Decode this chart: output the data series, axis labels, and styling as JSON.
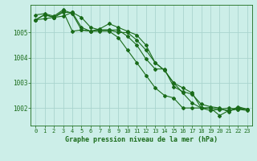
{
  "title": "Graphe pression niveau de la mer (hPa)",
  "bg_color": "#cceee8",
  "grid_color": "#aad4ce",
  "line_color": "#1a6b1a",
  "x_ticks": [
    0,
    1,
    2,
    3,
    4,
    5,
    6,
    7,
    8,
    9,
    10,
    11,
    12,
    13,
    14,
    15,
    16,
    17,
    18,
    19,
    20,
    21,
    22,
    23
  ],
  "y_ticks": [
    1002,
    1003,
    1004,
    1005
  ],
  "ylim": [
    1001.3,
    1006.1
  ],
  "xlim": [
    -0.5,
    23.5
  ],
  "series": [
    [
      1005.5,
      1005.7,
      1005.6,
      1005.8,
      1005.8,
      1005.6,
      1005.2,
      1005.1,
      1005.1,
      1005.0,
      1005.0,
      1004.7,
      1004.3,
      1003.8,
      1003.5,
      1003.0,
      1002.6,
      1002.2,
      1002.0,
      1002.0,
      1001.7,
      1001.9,
      1001.95,
      1001.9
    ],
    [
      1005.7,
      1005.75,
      1005.65,
      1005.9,
      1005.75,
      1005.1,
      1005.05,
      1005.05,
      1005.05,
      1004.8,
      1004.3,
      1003.8,
      1003.3,
      1002.8,
      1002.5,
      1002.4,
      1002.0,
      1002.0,
      1002.0,
      1001.9,
      1001.95,
      1002.0,
      1001.95,
      1001.95
    ],
    [
      1005.5,
      1005.72,
      1005.6,
      1005.85,
      1005.05,
      1005.1,
      1005.05,
      1005.15,
      1005.35,
      1005.2,
      1005.05,
      1004.9,
      1004.5,
      1003.8,
      1003.5,
      1003.0,
      1002.8,
      1002.6,
      1002.0,
      1002.0,
      1001.95,
      1001.9,
      1002.0,
      1001.95
    ],
    [
      1005.5,
      1005.55,
      1005.6,
      1005.65,
      1005.8,
      1005.2,
      1005.05,
      1005.1,
      1005.1,
      1005.1,
      1004.85,
      1004.5,
      1003.95,
      1003.55,
      1003.55,
      1002.85,
      1002.65,
      1002.55,
      1002.15,
      1002.05,
      1002.0,
      1001.85,
      1002.05,
      1001.95
    ]
  ]
}
